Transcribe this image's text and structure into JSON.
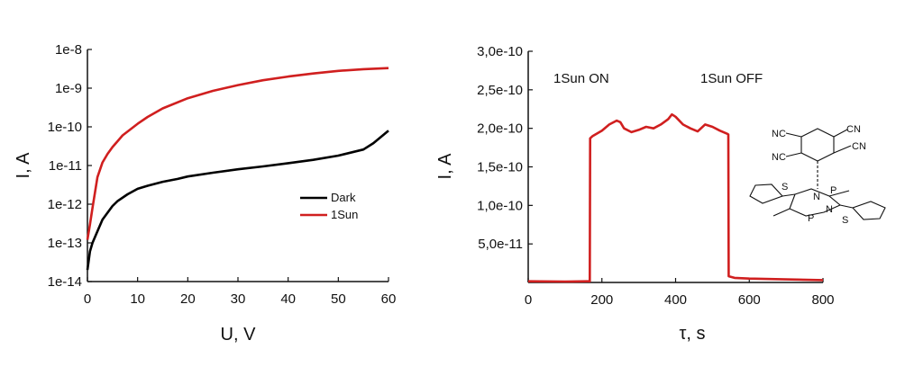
{
  "chart_data": [
    {
      "type": "line",
      "xlabel": "U, V",
      "ylabel": "I, A",
      "xlim": [
        0,
        60
      ],
      "ylim": [
        1e-14,
        1e-08
      ],
      "yscale": "log",
      "xticks": [
        0,
        10,
        20,
        30,
        40,
        50,
        60
      ],
      "xtick_labels": [
        "0",
        "10",
        "20",
        "30",
        "40",
        "50",
        "60"
      ],
      "yticks": [
        1e-14,
        1e-13,
        1e-12,
        1e-11,
        1e-10,
        1e-09,
        1e-08
      ],
      "ytick_labels": [
        "1e-14",
        "1e-13",
        "1e-12",
        "1e-11",
        "1e-10",
        "1e-9",
        "1e-8"
      ],
      "legend": "center-right",
      "grid": false,
      "series": [
        {
          "name": "Dark",
          "color": "#000000",
          "x": [
            0,
            0.5,
            1,
            2,
            3,
            4,
            5,
            6,
            8,
            10,
            12,
            15,
            18,
            20,
            25,
            30,
            35,
            40,
            45,
            50,
            55,
            57,
            60
          ],
          "y": [
            2e-14,
            6e-14,
            1e-13,
            2e-13,
            4e-13,
            6e-13,
            9e-13,
            1.2e-12,
            1.8e-12,
            2.5e-12,
            3e-12,
            3.8e-12,
            4.5e-12,
            5.2e-12,
            6.5e-12,
            8e-12,
            9.5e-12,
            1.15e-11,
            1.4e-11,
            1.8e-11,
            2.6e-11,
            3.8e-11,
            8e-11
          ]
        },
        {
          "name": "1Sun",
          "color": "#d01f1f",
          "x": [
            0,
            0.5,
            1,
            2,
            3,
            4,
            5,
            7,
            10,
            12,
            15,
            20,
            25,
            30,
            35,
            40,
            45,
            50,
            55,
            60
          ],
          "y": [
            1.2e-13,
            3e-13,
            8e-13,
            5e-12,
            1.2e-11,
            2e-11,
            3e-11,
            6e-11,
            1.2e-10,
            1.8e-10,
            3e-10,
            5.5e-10,
            8.5e-10,
            1.2e-09,
            1.6e-09,
            2e-09,
            2.4e-09,
            2.8e-09,
            3.1e-09,
            3.3e-09
          ]
        }
      ]
    },
    {
      "type": "line",
      "xlabel": "τ, s",
      "ylabel": "I, A",
      "xlim": [
        0,
        800
      ],
      "ylim": [
        0,
        3e-10
      ],
      "xticks": [
        0,
        200,
        400,
        600,
        800
      ],
      "xtick_labels": [
        "0",
        "200",
        "400",
        "600",
        "800"
      ],
      "yticks": [
        5e-11,
        1e-10,
        1.5e-10,
        2e-10,
        2.5e-10,
        3e-10
      ],
      "ytick_labels": [
        "5,0e-11",
        "1,0e-10",
        "1,5e-10",
        "2,0e-10",
        "2,5e-10",
        "3,0e-10"
      ],
      "grid": false,
      "annotations": [
        "1Sun ON",
        "1Sun OFF"
      ],
      "series": [
        {
          "color": "#d01f1f",
          "x": [
            0,
            100,
            160,
            167,
            168,
            175,
            200,
            220,
            240,
            250,
            260,
            280,
            300,
            320,
            340,
            360,
            380,
            390,
            400,
            420,
            440,
            460,
            480,
            500,
            520,
            540,
            543,
            544,
            560,
            600,
            700,
            800
          ],
          "y": [
            1.5e-12,
            1.2e-12,
            1.5e-12,
            1.5e-12,
            1.87e-10,
            1.9e-10,
            1.97e-10,
            2.05e-10,
            2.1e-10,
            2.08e-10,
            2e-10,
            1.95e-10,
            1.98e-10,
            2.02e-10,
            2e-10,
            2.05e-10,
            2.12e-10,
            2.18e-10,
            2.15e-10,
            2.05e-10,
            2e-10,
            1.96e-10,
            2.05e-10,
            2.02e-10,
            1.97e-10,
            1.93e-10,
            1.92e-10,
            8e-12,
            6e-12,
            5e-12,
            4e-12,
            3e-12
          ]
        }
      ]
    }
  ],
  "structure_labels": {
    "cn": [
      "NC",
      "CN",
      "NC",
      "CN"
    ],
    "s": [
      "S",
      "S"
    ],
    "n": [
      "N",
      "N"
    ],
    "p": [
      "P",
      "P"
    ]
  }
}
